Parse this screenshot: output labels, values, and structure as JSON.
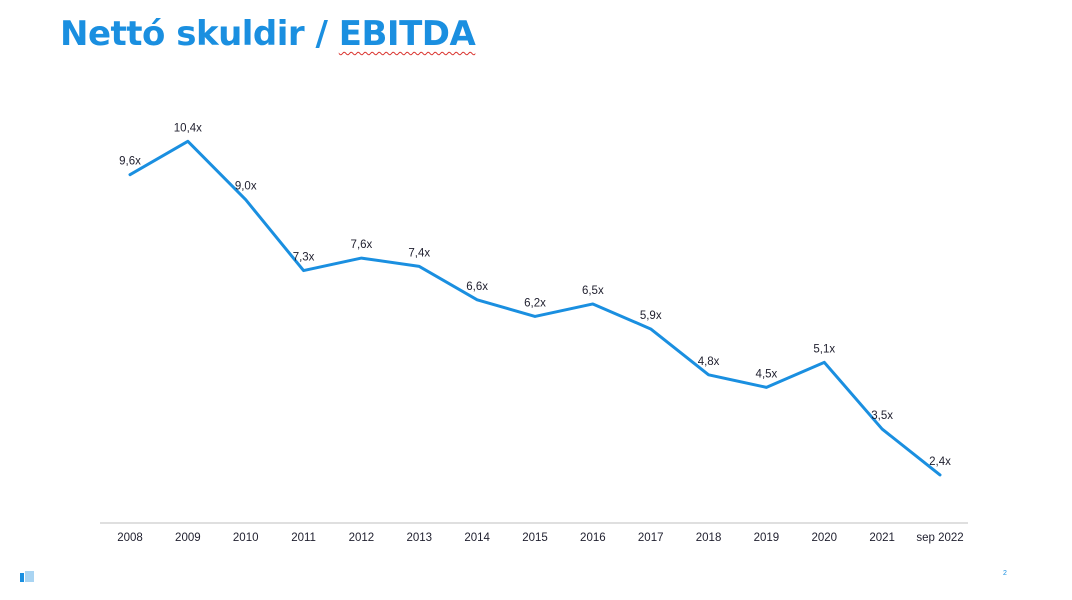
{
  "title": {
    "prefix": "Nettó skuldir / ",
    "emphasis": "EBITDA"
  },
  "page_number": "2",
  "colors": {
    "accent": "#1a8fe0",
    "line": "#1a8fe0",
    "text": "#1f1f2e",
    "axis": "#bfbfbf"
  },
  "chart_data": {
    "type": "line",
    "x": [
      "2008",
      "2009",
      "2010",
      "2011",
      "2012",
      "2013",
      "2014",
      "2015",
      "2016",
      "2017",
      "2018",
      "2019",
      "2020",
      "2021",
      "sep 2022"
    ],
    "series": [
      {
        "values": [
          9.6,
          10.4,
          9.0,
          7.3,
          7.6,
          7.4,
          6.6,
          6.2,
          6.5,
          5.9,
          4.8,
          4.5,
          5.1,
          3.5,
          2.4
        ],
        "labels": [
          "9,6x",
          "10,4x",
          "9,0x",
          "7,3x",
          "7,6x",
          "7,4x",
          "6,6x",
          "6,2x",
          "6,5x",
          "5,9x",
          "4,8x",
          "4,5x",
          "5,1x",
          "3,5x",
          "2,4x"
        ]
      }
    ],
    "title": "Nettó skuldir / EBITDA",
    "xlabel": "",
    "ylabel": "",
    "ylim": [
      0,
      10.4
    ],
    "grid": false,
    "legend": "none"
  }
}
